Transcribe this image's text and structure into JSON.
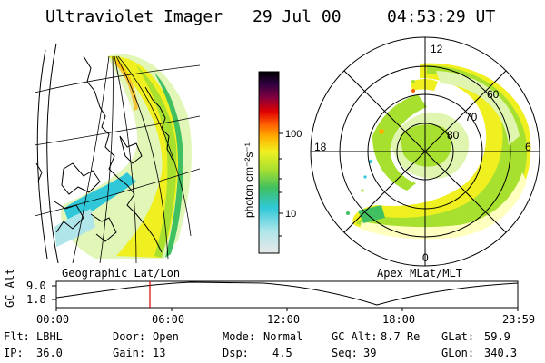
{
  "header": {
    "instrument": "Ultraviolet Imager",
    "date": "29 Jul 00",
    "time": "04:53:29 UT"
  },
  "left_panel": {
    "label": "Geographic Lat/Lon"
  },
  "right_panel": {
    "label": "Apex MLat/MLT",
    "mlt_labels": [
      "12",
      "18",
      "6",
      "0"
    ],
    "lat_labels": [
      "60",
      "70",
      "80"
    ]
  },
  "colorbar": {
    "unit_label": "photon cm⁻²s⁻¹",
    "ticks": [
      "100",
      "10"
    ],
    "scale": "log",
    "colors": [
      "#e8e8e8",
      "#b0e6ea",
      "#30c8d8",
      "#40c060",
      "#a8e030",
      "#f0f020",
      "#ffb000",
      "#ff6000",
      "#e00000",
      "#800040",
      "#300040",
      "#000000"
    ]
  },
  "altitude_plot": {
    "ylabel": "GC Alt",
    "y_ticks": [
      "9.0",
      "1.8"
    ],
    "x_ticks": [
      "00:00",
      "06:00",
      "12:00",
      "18:00",
      "23:59"
    ],
    "current_time_marker": "04:53",
    "marker_color": "#e00000"
  },
  "info": {
    "flt_label": "Flt:",
    "flt_value": "LBHL",
    "door_label": "Door:",
    "door_value": "Open",
    "mode_label": "Mode:",
    "mode_value": "Normal",
    "gcalt_label": "GC Alt:",
    "gcalt_value": "8.7 Re",
    "glat_label": "GLat:",
    "glat_value": "59.9",
    "ip_label": "IP:",
    "ip_value": "36.0",
    "gain_label": "Gain:",
    "gain_value": "13",
    "dsp_label": "Dsp:",
    "dsp_value": "4.5",
    "seq_label": "Seq:",
    "seq_value": "39",
    "glon_label": "GLon:",
    "glon_value": "340.3"
  }
}
